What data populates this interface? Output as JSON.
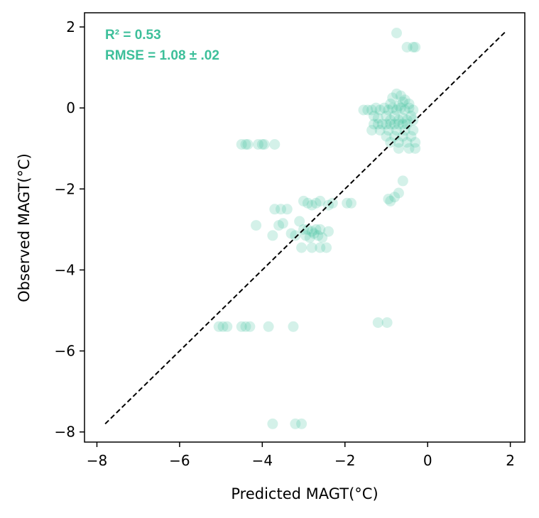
{
  "colors": {
    "points": "#3dbf9a",
    "annotation": "#3dbf9a",
    "identity_line": "#000000",
    "axes": "#000000"
  },
  "chart_data": {
    "type": "scatter",
    "title": "",
    "xlabel": "Predicted MAGT(°C)",
    "ylabel": "Observed MAGT(°C)",
    "xlim": [
      -8.3,
      2.35
    ],
    "ylim": [
      -8.25,
      2.35
    ],
    "xticks": [
      -8,
      -6,
      -4,
      -2,
      0,
      2
    ],
    "yticks": [
      -8,
      -6,
      -4,
      -2,
      0,
      2
    ],
    "xtick_labels": [
      "−8",
      "−6",
      "−4",
      "−2",
      "0",
      "2"
    ],
    "ytick_labels": [
      "−8",
      "−6",
      "−4",
      "−2",
      "0",
      "2"
    ],
    "identity_line": [
      [
        -7.8,
        -7.8
      ],
      [
        1.9,
        1.9
      ]
    ],
    "annotations": [
      "R² = 0.53",
      "RMSE = 1.08 ± .02"
    ],
    "points": [
      [
        -0.75,
        1.85
      ],
      [
        -0.5,
        1.5
      ],
      [
        -0.35,
        1.5
      ],
      [
        -0.3,
        1.5
      ],
      [
        -1.55,
        -0.05
      ],
      [
        -1.45,
        -0.05
      ],
      [
        -1.35,
        -0.05
      ],
      [
        -1.25,
        0.0
      ],
      [
        -1.15,
        -0.05
      ],
      [
        -1.05,
        0.0
      ],
      [
        -0.95,
        -0.05
      ],
      [
        -0.85,
        0.0
      ],
      [
        -0.75,
        -0.05
      ],
      [
        -0.65,
        0.0
      ],
      [
        -0.55,
        -0.05
      ],
      [
        -0.45,
        0.0
      ],
      [
        -0.35,
        -0.05
      ],
      [
        -0.75,
        0.35
      ],
      [
        -0.65,
        0.3
      ],
      [
        -0.85,
        0.25
      ],
      [
        -0.55,
        0.2
      ],
      [
        -0.9,
        0.1
      ],
      [
        -0.6,
        0.15
      ],
      [
        -0.45,
        0.1
      ],
      [
        -0.7,
        0.05
      ],
      [
        -1.3,
        -0.2
      ],
      [
        -1.2,
        -0.25
      ],
      [
        -1.0,
        -0.2
      ],
      [
        -0.8,
        -0.2
      ],
      [
        -0.6,
        -0.25
      ],
      [
        -0.4,
        -0.2
      ],
      [
        -0.35,
        -0.3
      ],
      [
        -0.5,
        -0.3
      ],
      [
        -0.7,
        -0.3
      ],
      [
        -0.9,
        -0.3
      ],
      [
        -1.3,
        -0.4
      ],
      [
        -1.2,
        -0.4
      ],
      [
        -1.1,
        -0.4
      ],
      [
        -1.0,
        -0.4
      ],
      [
        -0.9,
        -0.4
      ],
      [
        -0.8,
        -0.4
      ],
      [
        -0.7,
        -0.4
      ],
      [
        -0.6,
        -0.4
      ],
      [
        -0.5,
        -0.4
      ],
      [
        -1.35,
        -0.55
      ],
      [
        -1.15,
        -0.55
      ],
      [
        -0.95,
        -0.55
      ],
      [
        -0.75,
        -0.55
      ],
      [
        -0.55,
        -0.55
      ],
      [
        -0.35,
        -0.55
      ],
      [
        -1.0,
        -0.7
      ],
      [
        -0.8,
        -0.7
      ],
      [
        -0.6,
        -0.7
      ],
      [
        -0.4,
        -0.7
      ],
      [
        -0.7,
        -0.85
      ],
      [
        -0.5,
        -0.85
      ],
      [
        -0.3,
        -0.85
      ],
      [
        -0.9,
        -0.85
      ],
      [
        -0.7,
        -1.0
      ],
      [
        -0.45,
        -1.0
      ],
      [
        -0.3,
        -1.0
      ],
      [
        -0.6,
        -1.8
      ],
      [
        -0.7,
        -2.1
      ],
      [
        -0.8,
        -2.2
      ],
      [
        -0.9,
        -2.3
      ],
      [
        -0.95,
        -2.25
      ],
      [
        -4.5,
        -0.9
      ],
      [
        -4.4,
        -0.9
      ],
      [
        -4.35,
        -0.9
      ],
      [
        -4.1,
        -0.9
      ],
      [
        -4.0,
        -0.9
      ],
      [
        -3.95,
        -0.9
      ],
      [
        -3.7,
        -0.9
      ],
      [
        -3.7,
        -2.5
      ],
      [
        -3.55,
        -2.5
      ],
      [
        -3.4,
        -2.5
      ],
      [
        -3.6,
        -2.9
      ],
      [
        -3.5,
        -2.85
      ],
      [
        -4.15,
        -2.9
      ],
      [
        -3.75,
        -3.15
      ],
      [
        -3.3,
        -3.1
      ],
      [
        -3.2,
        -3.15
      ],
      [
        -3.1,
        -2.8
      ],
      [
        -3.0,
        -2.3
      ],
      [
        -2.9,
        -2.35
      ],
      [
        -2.8,
        -2.4
      ],
      [
        -2.7,
        -2.35
      ],
      [
        -2.6,
        -2.3
      ],
      [
        -2.4,
        -2.4
      ],
      [
        -2.3,
        -2.35
      ],
      [
        -1.95,
        -2.35
      ],
      [
        -1.85,
        -2.35
      ],
      [
        -3.0,
        -3.0
      ],
      [
        -2.9,
        -3.0
      ],
      [
        -2.8,
        -3.05
      ],
      [
        -2.7,
        -3.0
      ],
      [
        -2.6,
        -3.0
      ],
      [
        -2.4,
        -3.05
      ],
      [
        -2.95,
        -3.15
      ],
      [
        -2.85,
        -3.2
      ],
      [
        -2.75,
        -3.1
      ],
      [
        -2.65,
        -3.15
      ],
      [
        -2.55,
        -3.2
      ],
      [
        -3.05,
        -3.45
      ],
      [
        -2.8,
        -3.45
      ],
      [
        -2.6,
        -3.45
      ],
      [
        -2.45,
        -3.45
      ],
      [
        -5.05,
        -5.4
      ],
      [
        -4.95,
        -5.4
      ],
      [
        -4.85,
        -5.4
      ],
      [
        -4.5,
        -5.4
      ],
      [
        -4.4,
        -5.4
      ],
      [
        -4.3,
        -5.4
      ],
      [
        -3.85,
        -5.4
      ],
      [
        -3.25,
        -5.4
      ],
      [
        -1.2,
        -5.3
      ],
      [
        -0.98,
        -5.3
      ],
      [
        -3.75,
        -7.8
      ],
      [
        -3.2,
        -7.8
      ],
      [
        -3.05,
        -7.8
      ]
    ]
  }
}
